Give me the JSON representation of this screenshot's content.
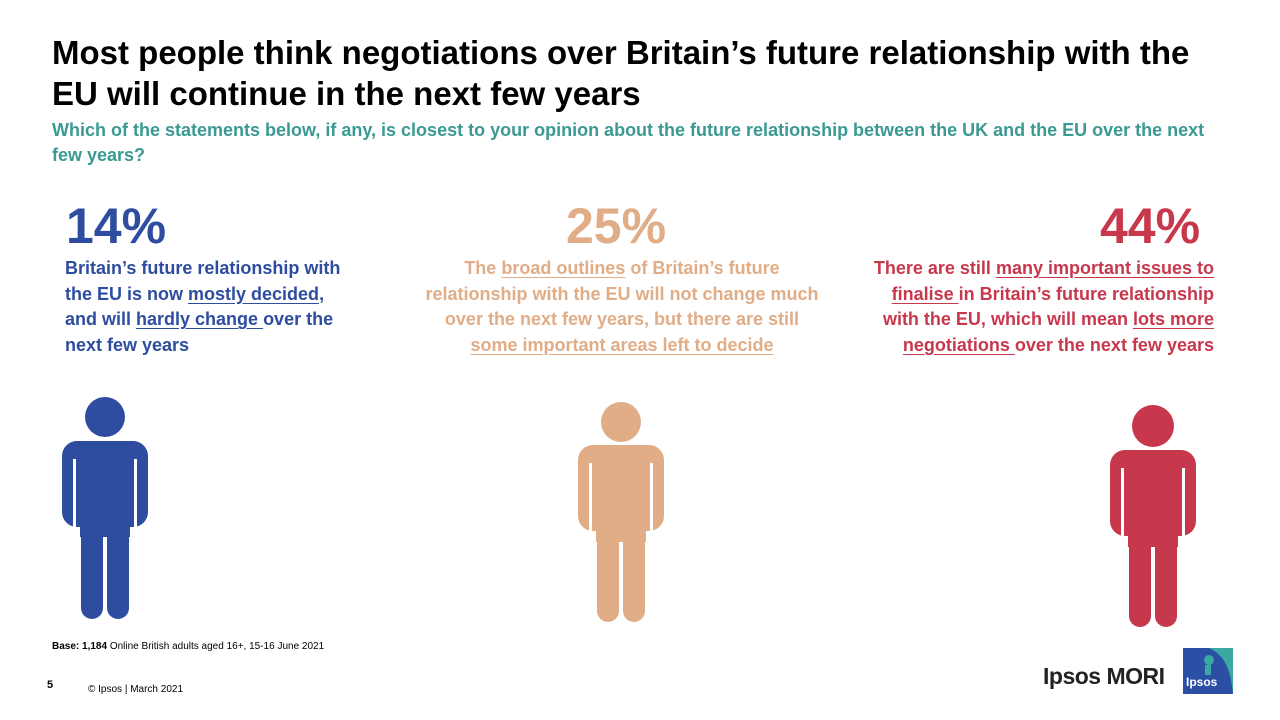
{
  "title": "Most people think negotiations over Britain’s future relationship with the EU will continue in the next few years",
  "subtitle": "Which of the statements below, if any, is closest to your opinion about the future relationship between the UK and the EU over the next few years?",
  "colors": {
    "teal": "#3a9a92",
    "blue": "#2e4da0",
    "tan": "#e0ad87",
    "red": "#c8384d"
  },
  "options": [
    {
      "percent": "14%",
      "parts": [
        "Britain’s future relationship with the EU is now ",
        "mostly decided",
        ", and will ",
        "hardly change ",
        "over the next few years"
      ]
    },
    {
      "percent": "25%",
      "parts": [
        "The ",
        "broad outlines",
        " of Britain’s future relationship with the EU will not change much over the next few years, but there are still ",
        "some important areas left to decide"
      ]
    },
    {
      "percent": "44%",
      "parts": [
        "There are still ",
        "many important issues to finalise ",
        "in Britain’s future relationship with the EU, which will mean ",
        "lots more negotiations ",
        "over the next few years"
      ]
    }
  ],
  "footer": {
    "base_label": "Base:",
    "base_count": "1,184",
    "base_text": " Online British adults aged 16+, 15-16 June 2021",
    "page_number": "5",
    "copyright": "© Ipsos | March 2021",
    "brand": "Ipsos MORI",
    "logo_text": "Ipsos"
  }
}
